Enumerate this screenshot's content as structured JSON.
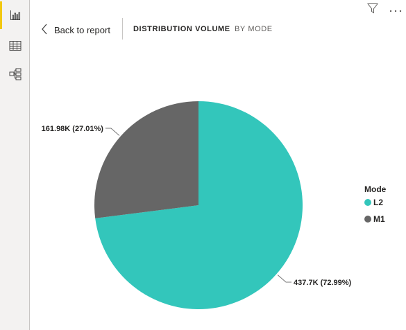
{
  "nav": {
    "back_label": "Back to report"
  },
  "header": {
    "title": "DISTRIBUTION VOLUME",
    "subtitle": "BY MODE"
  },
  "rail": {
    "items": [
      {
        "icon": "bar-chart-icon",
        "active": true
      },
      {
        "icon": "table-icon",
        "active": false
      },
      {
        "icon": "hierarchy-icon",
        "active": false
      }
    ]
  },
  "toolbar": {
    "icons": [
      "filter-icon",
      "more-options-icon"
    ]
  },
  "chart_data": {
    "type": "pie",
    "legend_title": "Mode",
    "legend_position": "right",
    "slices": [
      {
        "name": "L2",
        "value": 437.7,
        "display": "437.7K (72.99%)",
        "color": "#33c6bb"
      },
      {
        "name": "M1",
        "value": 161.98,
        "display": "161.98K (27.01%)",
        "color": "#666666"
      }
    ]
  }
}
